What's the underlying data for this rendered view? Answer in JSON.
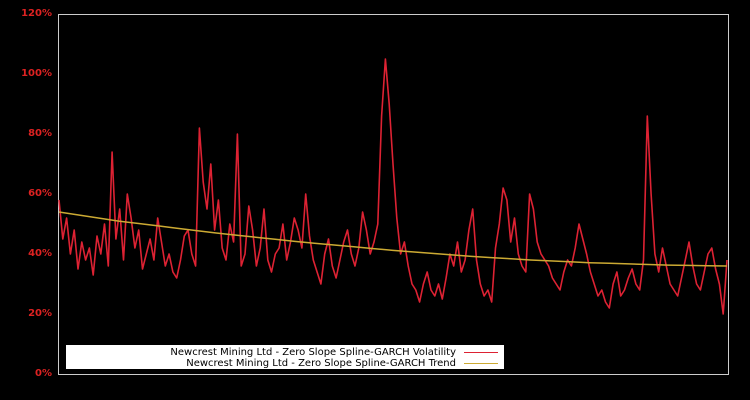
{
  "chart_data": {
    "type": "line",
    "title": "",
    "xlabel": "",
    "ylabel": "",
    "ylim": [
      0,
      120
    ],
    "y_ticks": [
      "0%",
      "20%",
      "40%",
      "60%",
      "80%",
      "100%",
      "120%"
    ],
    "y_tick_values": [
      0,
      20,
      40,
      60,
      80,
      100,
      120
    ],
    "grid": false,
    "legend_position": "lower left",
    "background": "#000000",
    "series": [
      {
        "name": "Newcrest Mining Ltd - Zero Slope Spline-GARCH Volatility",
        "color": "#dd2233",
        "values": [
          58,
          45,
          52,
          40,
          48,
          35,
          44,
          38,
          42,
          33,
          46,
          40,
          50,
          36,
          74,
          45,
          55,
          38,
          60,
          52,
          42,
          48,
          35,
          40,
          45,
          38,
          52,
          44,
          36,
          40,
          34,
          32,
          38,
          46,
          48,
          40,
          36,
          82,
          64,
          55,
          70,
          48,
          58,
          42,
          38,
          50,
          44,
          80,
          36,
          40,
          56,
          48,
          36,
          42,
          55,
          38,
          34,
          40,
          42,
          50,
          38,
          44,
          52,
          48,
          42,
          60,
          46,
          38,
          34,
          30,
          40,
          45,
          36,
          32,
          38,
          44,
          48,
          40,
          36,
          42,
          54,
          48,
          40,
          44,
          50,
          86,
          105,
          90,
          70,
          52,
          40,
          44,
          36,
          30,
          28,
          24,
          30,
          34,
          28,
          26,
          30,
          25,
          32,
          40,
          36,
          44,
          34,
          38,
          48,
          55,
          38,
          30,
          26,
          28,
          24,
          42,
          50,
          62,
          58,
          44,
          52,
          40,
          36,
          34,
          60,
          55,
          44,
          40,
          38,
          36,
          32,
          30,
          28,
          34,
          38,
          36,
          42,
          50,
          45,
          40,
          34,
          30,
          26,
          28,
          24,
          22,
          30,
          34,
          26,
          28,
          32,
          35,
          30,
          28,
          38,
          86,
          60,
          40,
          34,
          42,
          36,
          30,
          28,
          26,
          32,
          38,
          44,
          36,
          30,
          28,
          34,
          40,
          42,
          35,
          30,
          20,
          38
        ]
      },
      {
        "name": "Newcrest Mining Ltd - Zero Slope Spline-GARCH Trend",
        "color": "#ccaa33",
        "values": [
          54,
          53,
          52,
          51,
          50.2,
          49.4,
          48.6,
          47.8,
          47,
          46.3,
          45.6,
          44.9,
          44.2,
          43.6,
          43,
          42.4,
          41.8,
          41.2,
          40.7,
          40.2,
          39.7,
          39.2,
          38.8,
          38.4,
          38,
          37.7,
          37.4,
          37.1,
          36.9,
          36.7,
          36.5,
          36.3,
          36.2,
          36.1,
          36
        ]
      }
    ]
  },
  "legend": {
    "items": [
      {
        "label": "Newcrest Mining Ltd - Zero Slope Spline-GARCH Volatility",
        "color": "#dd2233"
      },
      {
        "label": "Newcrest Mining Ltd - Zero Slope Spline-GARCH Trend",
        "color": "#ccaa33"
      }
    ]
  },
  "axis": {
    "tick_color": "#dd2222",
    "frame_color": "#cccccc"
  }
}
